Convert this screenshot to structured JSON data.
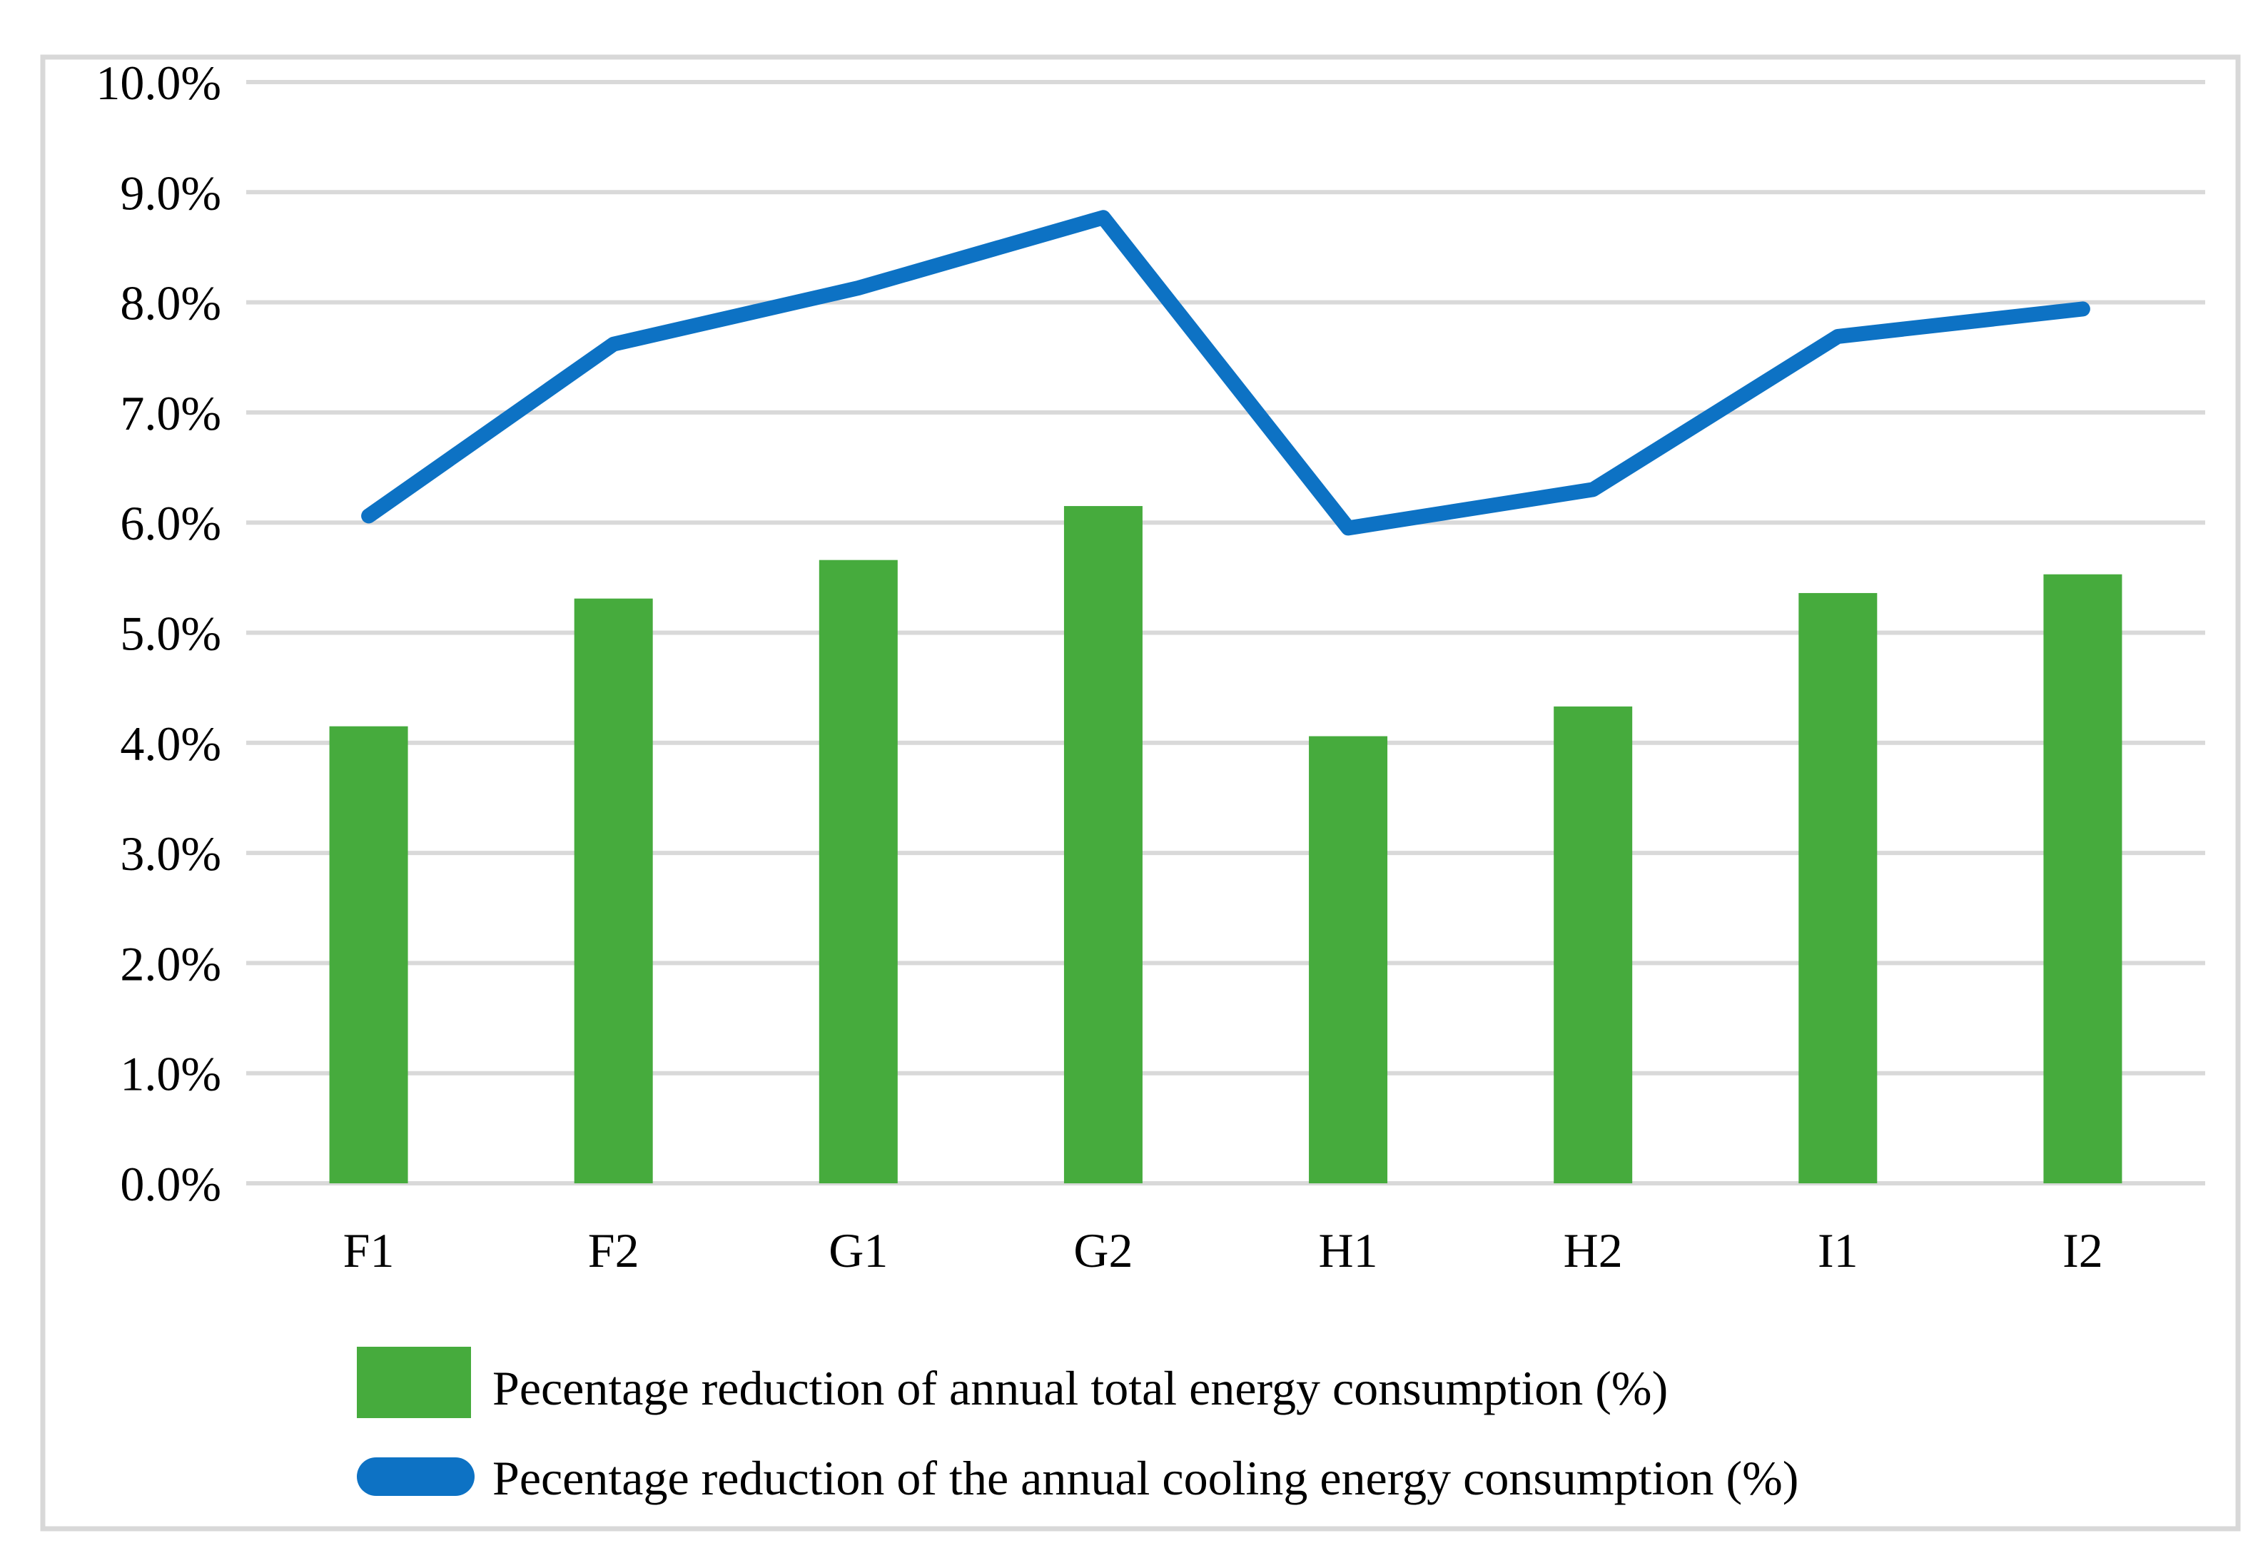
{
  "chart_data": {
    "type": "bar+line combo",
    "categories": [
      "F1",
      "F2",
      "G1",
      "G2",
      "H1",
      "H2",
      "I1",
      "I2"
    ],
    "series": [
      {
        "name": "Pecentage reduction of annual total energy consumption (%)",
        "type": "bar",
        "color": "#46ab3d",
        "values": [
          4.15,
          5.31,
          5.66,
          6.15,
          4.06,
          4.33,
          5.36,
          5.53
        ]
      },
      {
        "name": "Pecentage reduction of the annual cooling energy consumption (%)",
        "type": "line",
        "color": "#0d72c4",
        "values": [
          6.06,
          7.62,
          8.13,
          8.77,
          5.95,
          6.3,
          7.69,
          7.94
        ]
      }
    ],
    "title": "",
    "xlabel": "",
    "ylabel": "",
    "ylim": [
      0,
      10
    ],
    "ytick_step": 1,
    "yticklabels": [
      "0.0%",
      "1.0%",
      "2.0%",
      "3.0%",
      "4.0%",
      "5.0%",
      "6.0%",
      "7.0%",
      "8.0%",
      "9.0%",
      "10.0%"
    ],
    "grid": "horizontal gridlines only",
    "gridline_color": "#d9d9d9",
    "border_color": "#d8d8d8",
    "legend_position": "bottom-left, stacked rows"
  }
}
